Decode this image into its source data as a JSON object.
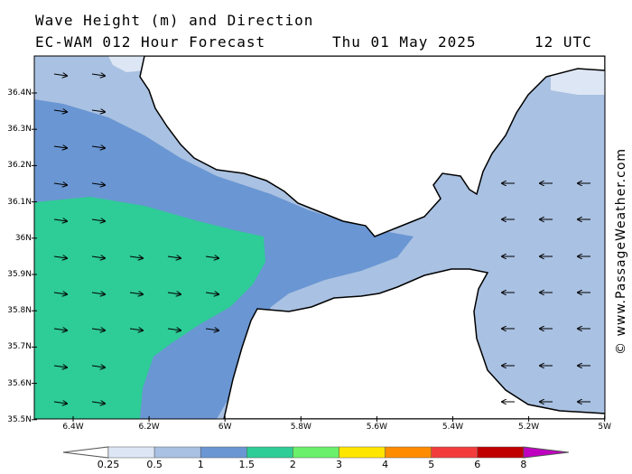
{
  "header": {
    "line1": "Wave Height (m) and Direction",
    "line2": "EC-WAM 012 Hour Forecast",
    "date": "Thu 01 May 2025",
    "time": "12 UTC"
  },
  "map": {
    "lat_ticks": [
      "36.4N",
      "36.3N",
      "36.2N",
      "36.1N",
      "36N",
      "35.9N",
      "35.8N",
      "35.7N",
      "35.6N",
      "35.5N"
    ],
    "lon_ticks": [
      "6.4W",
      "6.2W",
      "6W",
      "5.8W",
      "5.6W",
      "5.4W",
      "5.2W",
      "5W"
    ],
    "colors": {
      "land": "#ffffff",
      "coast": "#000000",
      "band_0_25": "#dde6f4",
      "band_0_5": "#a9c1e2",
      "band_1": "#6a96d3",
      "band_1_5": "#2ecc96"
    }
  },
  "colorbar": {
    "ticks": [
      "0.25",
      "0.5",
      "1",
      "1.5",
      "2",
      "3",
      "4",
      "5",
      "6",
      "8"
    ],
    "colors": [
      "#dde6f4",
      "#a9c1e2",
      "#6a96d3",
      "#2ecc96",
      "#6af06a",
      "#ffe600",
      "#ff8c00",
      "#f23c3c",
      "#c00000",
      "#c000c0"
    ]
  },
  "credit": "© www.PassageWeather.com"
}
